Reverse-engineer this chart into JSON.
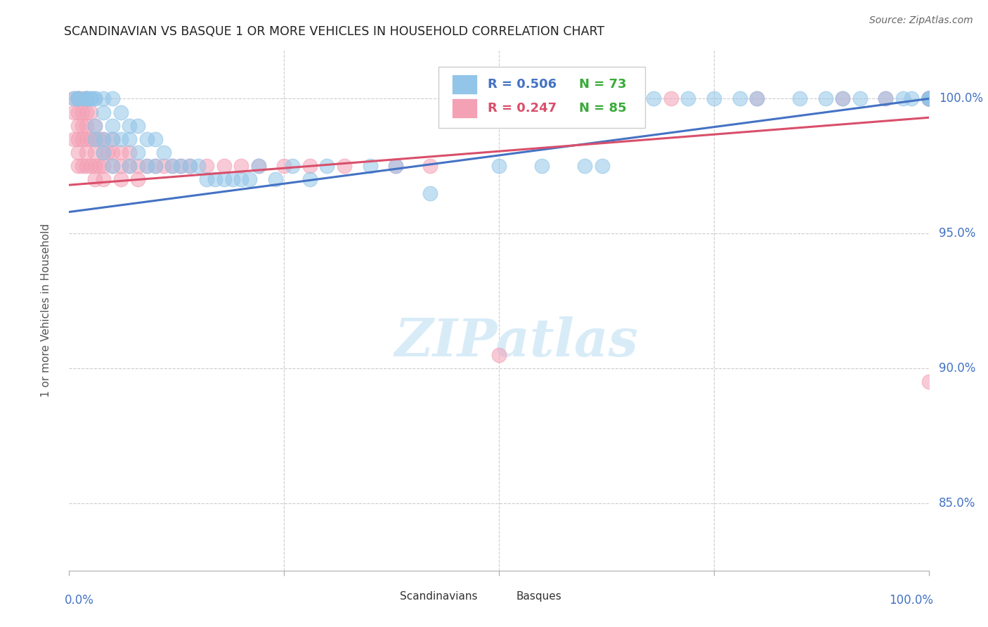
{
  "title": "SCANDINAVIAN VS BASQUE 1 OR MORE VEHICLES IN HOUSEHOLD CORRELATION CHART",
  "source": "Source: ZipAtlas.com",
  "ylabel": "1 or more Vehicles in Household",
  "xlim": [
    0.0,
    1.0
  ],
  "ylim": [
    82.5,
    101.8
  ],
  "ytick_vals": [
    85.0,
    90.0,
    95.0,
    100.0
  ],
  "legend_blue_r": "R = 0.506",
  "legend_blue_n": "N = 73",
  "legend_pink_r": "R = 0.247",
  "legend_pink_n": "N = 85",
  "legend_label_blue": "Scandinavians",
  "legend_label_pink": "Basques",
  "blue_color": "#92c5e8",
  "pink_color": "#f4a0b5",
  "blue_line_color": "#4472c4",
  "pink_line_color": "#d94f6b",
  "watermark_color": "#d8ecf8",
  "title_color": "#222222",
  "axis_label_color": "#555555",
  "tick_label_color": "#4472c4",
  "grid_color": "#cccccc",
  "source_color": "#666666",
  "blue_trendline_x": [
    0.0,
    1.0
  ],
  "blue_trendline_y": [
    95.8,
    100.0
  ],
  "pink_trendline_x": [
    0.0,
    1.0
  ],
  "pink_trendline_y": [
    96.8,
    99.3
  ],
  "scandinavian_x": [
    0.005,
    0.01,
    0.01,
    0.01,
    0.02,
    0.02,
    0.02,
    0.02,
    0.025,
    0.025,
    0.03,
    0.03,
    0.03,
    0.03,
    0.04,
    0.04,
    0.04,
    0.04,
    0.05,
    0.05,
    0.05,
    0.05,
    0.06,
    0.06,
    0.07,
    0.07,
    0.07,
    0.08,
    0.08,
    0.09,
    0.09,
    0.1,
    0.1,
    0.11,
    0.12,
    0.13,
    0.14,
    0.15,
    0.16,
    0.17,
    0.18,
    0.19,
    0.2,
    0.21,
    0.22,
    0.24,
    0.26,
    0.28,
    0.3,
    0.35,
    0.38,
    0.42,
    0.5,
    0.55,
    0.6,
    0.62,
    0.65,
    0.68,
    0.72,
    0.75,
    0.78,
    0.8,
    0.85,
    0.88,
    0.9,
    0.92,
    0.95,
    0.97,
    0.98,
    1.0,
    1.0,
    1.0,
    1.0
  ],
  "scandinavian_y": [
    100.0,
    100.0,
    100.0,
    100.0,
    100.0,
    100.0,
    100.0,
    100.0,
    100.0,
    100.0,
    100.0,
    100.0,
    99.0,
    98.5,
    100.0,
    99.5,
    98.5,
    98.0,
    100.0,
    99.0,
    98.5,
    97.5,
    99.5,
    98.5,
    99.0,
    98.5,
    97.5,
    99.0,
    98.0,
    98.5,
    97.5,
    98.5,
    97.5,
    98.0,
    97.5,
    97.5,
    97.5,
    97.5,
    97.0,
    97.0,
    97.0,
    97.0,
    97.0,
    97.0,
    97.5,
    97.0,
    97.5,
    97.0,
    97.5,
    97.5,
    97.5,
    96.5,
    97.5,
    97.5,
    97.5,
    97.5,
    100.0,
    100.0,
    100.0,
    100.0,
    100.0,
    100.0,
    100.0,
    100.0,
    100.0,
    100.0,
    100.0,
    100.0,
    100.0,
    100.0,
    100.0,
    100.0,
    100.0
  ],
  "basque_x": [
    0.005,
    0.005,
    0.005,
    0.01,
    0.01,
    0.01,
    0.01,
    0.01,
    0.01,
    0.01,
    0.015,
    0.015,
    0.015,
    0.015,
    0.015,
    0.02,
    0.02,
    0.02,
    0.02,
    0.02,
    0.02,
    0.025,
    0.025,
    0.025,
    0.03,
    0.03,
    0.03,
    0.03,
    0.03,
    0.035,
    0.035,
    0.04,
    0.04,
    0.04,
    0.04,
    0.045,
    0.05,
    0.05,
    0.05,
    0.06,
    0.06,
    0.06,
    0.07,
    0.07,
    0.08,
    0.08,
    0.09,
    0.1,
    0.11,
    0.12,
    0.13,
    0.14,
    0.16,
    0.18,
    0.2,
    0.22,
    0.25,
    0.28,
    0.32,
    0.38,
    0.42,
    0.5,
    0.55,
    0.6,
    0.7,
    0.8,
    0.9,
    0.95,
    1.0,
    1.0,
    1.0,
    1.0,
    1.0,
    1.0,
    1.0,
    1.0,
    1.0,
    1.0,
    1.0,
    1.0,
    1.0,
    1.0,
    1.0,
    1.0,
    1.0
  ],
  "basque_y": [
    100.0,
    99.5,
    98.5,
    100.0,
    100.0,
    99.5,
    99.0,
    98.5,
    98.0,
    97.5,
    100.0,
    99.5,
    99.0,
    98.5,
    97.5,
    100.0,
    99.5,
    99.0,
    98.5,
    98.0,
    97.5,
    99.5,
    98.5,
    97.5,
    99.0,
    98.5,
    98.0,
    97.5,
    97.0,
    98.5,
    97.5,
    98.5,
    98.0,
    97.5,
    97.0,
    98.0,
    98.5,
    98.0,
    97.5,
    98.0,
    97.5,
    97.0,
    98.0,
    97.5,
    97.5,
    97.0,
    97.5,
    97.5,
    97.5,
    97.5,
    97.5,
    97.5,
    97.5,
    97.5,
    97.5,
    97.5,
    97.5,
    97.5,
    97.5,
    97.5,
    97.5,
    90.5,
    100.0,
    100.0,
    100.0,
    100.0,
    100.0,
    100.0,
    100.0,
    100.0,
    100.0,
    100.0,
    100.0,
    100.0,
    100.0,
    100.0,
    100.0,
    100.0,
    100.0,
    100.0,
    100.0,
    100.0,
    89.5,
    100.0,
    100.0
  ]
}
